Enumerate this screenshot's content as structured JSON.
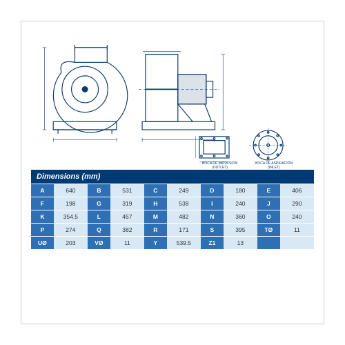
{
  "header": "Dimensions (mm)",
  "captions": {
    "outlet_line1": "BOCA DE IMPULSIÓN",
    "outlet_line2": "(OUTLET)",
    "inlet_line1": "BOCA DE ASPIRACIÓN",
    "inlet_line2": "(INLET)"
  },
  "diagram": {
    "stroke": "#0b3a6e",
    "fill_none": "none"
  },
  "table": {
    "colors": {
      "header_bg": "#003a75",
      "label_bg": "#2f6fb3",
      "value_bg": "#d8e8f5"
    },
    "rows": [
      [
        {
          "l": "A",
          "v": "640"
        },
        {
          "l": "B",
          "v": "531"
        },
        {
          "l": "C",
          "v": "249"
        },
        {
          "l": "D",
          "v": "180"
        },
        {
          "l": "E",
          "v": "406"
        }
      ],
      [
        {
          "l": "F",
          "v": "198"
        },
        {
          "l": "G",
          "v": "319"
        },
        {
          "l": "H",
          "v": "538"
        },
        {
          "l": "I",
          "v": "240"
        },
        {
          "l": "J",
          "v": "290"
        }
      ],
      [
        {
          "l": "K",
          "v": "354.5"
        },
        {
          "l": "L",
          "v": "457"
        },
        {
          "l": "M",
          "v": "482"
        },
        {
          "l": "N",
          "v": "360"
        },
        {
          "l": "O",
          "v": "240"
        }
      ],
      [
        {
          "l": "P",
          "v": "274"
        },
        {
          "l": "Q",
          "v": "382"
        },
        {
          "l": "R",
          "v": "171"
        },
        {
          "l": "S",
          "v": "395"
        },
        {
          "l": "TØ",
          "v": "11"
        }
      ],
      [
        {
          "l": "UØ",
          "v": "203"
        },
        {
          "l": "VØ",
          "v": "11"
        },
        {
          "l": "Y",
          "v": "539.5"
        },
        {
          "l": "Z1",
          "v": "13"
        },
        {
          "l": "",
          "v": ""
        }
      ]
    ]
  }
}
